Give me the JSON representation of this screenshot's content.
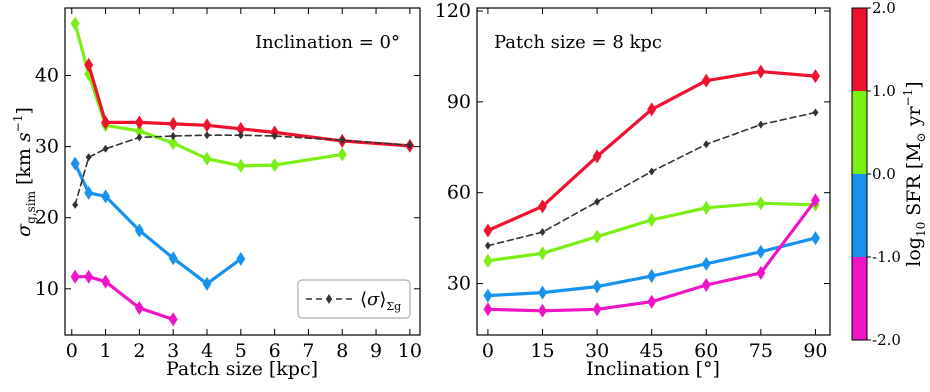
{
  "colors": {
    "red": "#f0112e",
    "green": "#7aef14",
    "blue": "#1793ef",
    "magenta": "#f014c7",
    "mean": "#333333"
  },
  "chart_data": [
    {
      "type": "line",
      "annotation": "Inclination = 0°",
      "xlabel": "Patch size [kpc]",
      "ylabel": "σ_g,sim [km s^-1]",
      "xlim": [
        -0.2,
        10.3
      ],
      "ylim": [
        3.5,
        49.5
      ],
      "xticks": [
        0,
        1,
        2,
        3,
        4,
        5,
        6,
        7,
        8,
        9,
        10
      ],
      "xtick_labels": [
        "0",
        "1",
        "2",
        "3",
        "4",
        "5",
        "6",
        "7",
        "8",
        "9",
        "10"
      ],
      "yticks": [
        10,
        20,
        30,
        40
      ],
      "ytick_labels": [
        "10",
        "20",
        "30",
        "40"
      ],
      "legend": {
        "position": "bottom-right",
        "entries": [
          "⟨σ⟩_Σg"
        ]
      },
      "series": [
        {
          "color_key": "green",
          "x": [
            0.1,
            0.5,
            1,
            2,
            3,
            4,
            5,
            6,
            8
          ],
          "y": [
            47.3,
            40.2,
            33.0,
            32.2,
            30.5,
            28.3,
            27.3,
            27.4,
            28.9
          ]
        },
        {
          "color_key": "red",
          "x": [
            0.5,
            1,
            2,
            3,
            4,
            5,
            6,
            8,
            10
          ],
          "y": [
            41.5,
            33.4,
            33.4,
            33.2,
            33.0,
            32.5,
            32.0,
            30.8,
            30.1
          ]
        },
        {
          "color_key": "blue",
          "x": [
            0.1,
            0.5,
            1,
            2,
            3,
            4,
            5
          ],
          "y": [
            27.6,
            23.5,
            23.0,
            18.2,
            14.3,
            10.7,
            14.2
          ]
        },
        {
          "color_key": "magenta",
          "x": [
            0.1,
            0.5,
            1,
            2,
            3
          ],
          "y": [
            11.7,
            11.7,
            11.0,
            7.3,
            5.7
          ]
        },
        {
          "color_key": "mean",
          "dashed": true,
          "x": [
            0.1,
            0.5,
            1,
            2,
            3,
            4,
            5,
            6,
            8,
            10
          ],
          "y": [
            21.8,
            28.5,
            29.7,
            31.3,
            31.5,
            31.6,
            31.6,
            31.5,
            30.9,
            30.2
          ]
        }
      ]
    },
    {
      "type": "line",
      "annotation": "Patch size = 8 kpc",
      "xlabel": "Inclination [°]",
      "ylabel": "",
      "xlim": [
        -3,
        94
      ],
      "ylim": [
        13,
        121
      ],
      "xticks": [
        0,
        15,
        30,
        45,
        60,
        75,
        90
      ],
      "xtick_labels": [
        "0",
        "15",
        "30",
        "45",
        "60",
        "75",
        "90"
      ],
      "yticks": [
        30,
        60,
        90,
        120
      ],
      "ytick_labels": [
        "30",
        "60",
        "90",
        "120"
      ],
      "series": [
        {
          "color_key": "red",
          "x": [
            0,
            15,
            30,
            45,
            60,
            75,
            90
          ],
          "y": [
            47.5,
            55.5,
            72.0,
            87.5,
            97.0,
            100.0,
            98.5
          ]
        },
        {
          "color_key": "mean",
          "dashed": true,
          "x": [
            0,
            15,
            30,
            45,
            60,
            75,
            90
          ],
          "y": [
            42.5,
            47.0,
            57.0,
            67.0,
            76.0,
            82.5,
            86.5
          ]
        },
        {
          "color_key": "green",
          "x": [
            0,
            15,
            30,
            45,
            60,
            75,
            90
          ],
          "y": [
            37.5,
            40.0,
            45.5,
            51.0,
            55.0,
            56.5,
            56.0
          ]
        },
        {
          "color_key": "blue",
          "x": [
            0,
            15,
            30,
            45,
            60,
            75,
            90
          ],
          "y": [
            26.0,
            27.0,
            29.0,
            32.5,
            36.5,
            40.5,
            45.0
          ]
        },
        {
          "color_key": "magenta",
          "x": [
            0,
            15,
            30,
            45,
            60,
            75,
            90
          ],
          "y": [
            21.5,
            21.0,
            21.5,
            24.0,
            29.5,
            33.5,
            57.5
          ]
        }
      ]
    }
  ],
  "colorbar": {
    "label": "log10 SFR [M⊙ yr^-1]",
    "ticks": [
      "2.0",
      "1.0",
      "0.0",
      "-1.0",
      "-2.0"
    ],
    "bands": [
      "red",
      "green",
      "blue",
      "magenta"
    ]
  }
}
